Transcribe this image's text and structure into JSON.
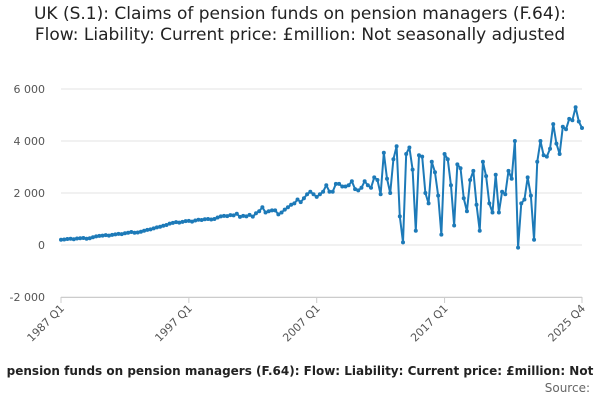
{
  "chart_data": {
    "type": "line",
    "title": "UK (S.1): Claims of pension funds on pension managers (F.64): Flow: Liability: Current price: £million: Not seasonally adjusted",
    "legend_label": "pension funds on pension managers (F.64): Flow: Liability: Current price: £million: Not",
    "source_label": "Source:",
    "ylim": [
      -2000,
      6000
    ],
    "y_ticks": [
      -2000,
      0,
      2000,
      4000,
      6000
    ],
    "y_tick_labels": [
      "-2 000",
      "0",
      "2 000",
      "4 000",
      "6 000"
    ],
    "x_ticks": [
      "1987 Q1",
      "1997 Q1",
      "2007 Q1",
      "2017 Q1",
      "2025 Q4"
    ],
    "grid": true,
    "series_color": "#1d7ab8",
    "series": [
      {
        "values": [
          200,
          210,
          230,
          240,
          220,
          250,
          260,
          270,
          240,
          260,
          300,
          330,
          350,
          360,
          380,
          360,
          390,
          410,
          430,
          420,
          450,
          470,
          500,
          470,
          480,
          510,
          550,
          580,
          600,
          640,
          680,
          700,
          740,
          770,
          820,
          850,
          880,
          860,
          890,
          920,
          930,
          900,
          940,
          970,
          960,
          990,
          1000,
          980,
          1000,
          1060,
          1100,
          1120,
          1110,
          1150,
          1140,
          1200,
          1080,
          1120,
          1100,
          1160,
          1090,
          1220,
          1300,
          1450,
          1250,
          1300,
          1330,
          1330,
          1180,
          1250,
          1360,
          1450,
          1550,
          1600,
          1750,
          1650,
          1800,
          1950,
          2050,
          1950,
          1850,
          1950,
          2050,
          2300,
          2050,
          2050,
          2350,
          2350,
          2250,
          2250,
          2300,
          2450,
          2150,
          2100,
          2200,
          2450,
          2300,
          2200,
          2600,
          2500,
          1950,
          3550,
          2550,
          2000,
          3300,
          3800,
          1100,
          100,
          3500,
          3750,
          2900,
          550,
          3450,
          3400,
          2000,
          1600,
          3200,
          2800,
          1900,
          400,
          3500,
          3300,
          2300,
          750,
          3100,
          2950,
          1800,
          1300,
          2500,
          2850,
          1550,
          550,
          3200,
          2650,
          1600,
          1250,
          2700,
          1250,
          2050,
          1950,
          2850,
          2550,
          4000,
          -100,
          1600,
          1750,
          2600,
          1900,
          200,
          3200,
          4000,
          3450,
          3400,
          3700,
          4650,
          3900,
          3500,
          4550,
          4450,
          4850,
          4800,
          5300,
          4750,
          4500
        ]
      }
    ]
  }
}
